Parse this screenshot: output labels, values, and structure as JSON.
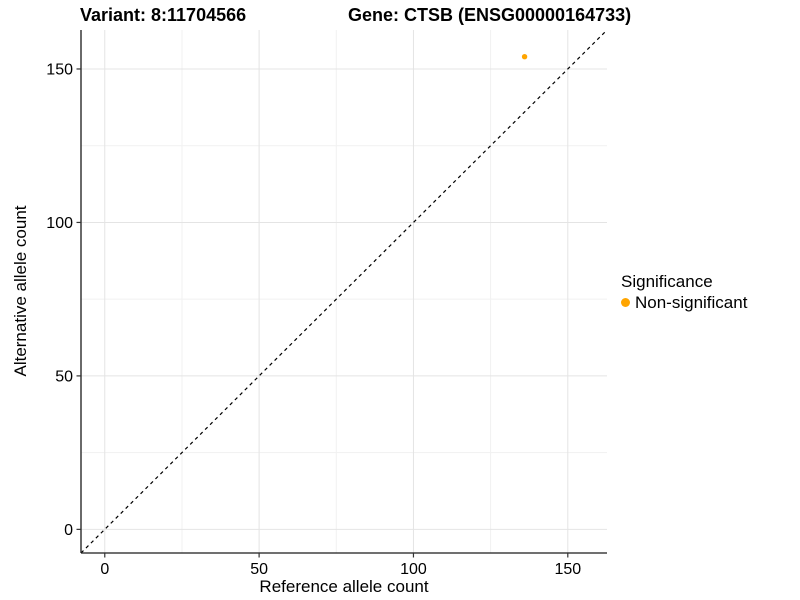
{
  "titles": {
    "variant": "Variant: 8:11704566",
    "gene": "Gene: CTSB (ENSG00000164733)"
  },
  "chart_data": {
    "type": "scatter",
    "xlabel": "Reference allele count",
    "ylabel": "Alternative allele count",
    "xlim": [
      -7.7,
      162.7
    ],
    "ylim": [
      -7.7,
      162.7
    ],
    "x_ticks": [
      0,
      50,
      100,
      150
    ],
    "y_ticks": [
      0,
      50,
      100,
      150
    ],
    "x_minor_ticks": [
      25,
      75,
      125
    ],
    "y_minor_ticks": [
      25,
      75,
      125
    ],
    "grid": true,
    "reference_line": {
      "type": "identity-diagonal",
      "style": "dashed",
      "color": "#000000"
    },
    "series": [
      {
        "name": "Non-significant",
        "color": "#FFA500",
        "points": [
          {
            "x": 136,
            "y": 154
          }
        ]
      }
    ],
    "legend": {
      "position": "right",
      "title": "Significance",
      "items": [
        {
          "label": "Non-significant",
          "color": "#FFA500"
        }
      ]
    }
  },
  "colors": {
    "background": "#ffffff",
    "major_grid": "#e4e4e4",
    "minor_grid": "#f1f1f1",
    "axis_line": "#1a1a1a",
    "tick_mark": "#333333",
    "text": "#000000",
    "point": "#FFA500"
  }
}
